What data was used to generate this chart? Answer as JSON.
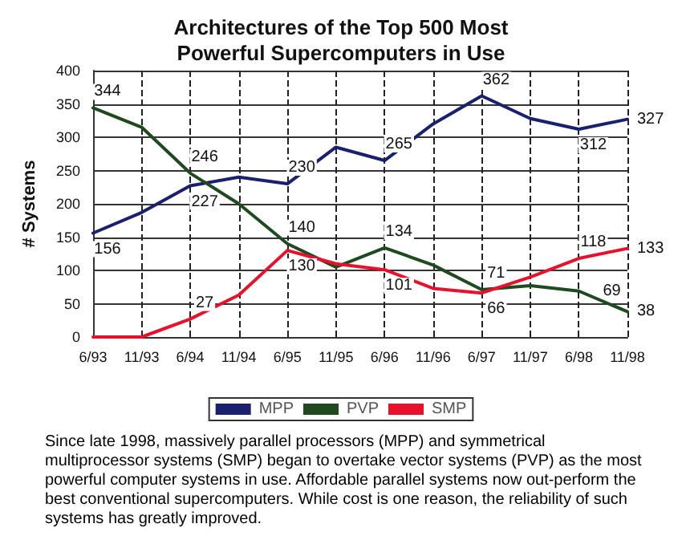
{
  "chart_data": {
    "type": "line",
    "title": "Architectures of the Top 500 Most\nPowerful Supercomputers in Use",
    "ylabel": "# Systems",
    "categories": [
      "6/93",
      "11/93",
      "6/94",
      "11/94",
      "6/95",
      "11/95",
      "6/96",
      "11/96",
      "6/97",
      "11/97",
      "6/98",
      "11/98"
    ],
    "series": [
      {
        "name": "MPP",
        "color": "#1a1f6e",
        "values": [
          156,
          187,
          227,
          240,
          230,
          285,
          265,
          320,
          362,
          328,
          312,
          327
        ],
        "value_labels": [
          "156",
          null,
          "227",
          null,
          "230",
          null,
          "265",
          null,
          "362",
          null,
          "312",
          "327"
        ]
      },
      {
        "name": "PVP",
        "color": "#1f4a1f",
        "values": [
          344,
          315,
          246,
          200,
          140,
          105,
          134,
          108,
          71,
          77,
          69,
          38
        ],
        "value_labels": [
          "344",
          null,
          "246",
          null,
          "140",
          null,
          "134",
          null,
          "71",
          null,
          "69",
          "38"
        ]
      },
      {
        "name": "SMP",
        "color": "#e8102a",
        "values": [
          0,
          0,
          27,
          63,
          130,
          110,
          101,
          73,
          66,
          90,
          118,
          133
        ],
        "value_labels": [
          null,
          null,
          "27",
          null,
          "130",
          null,
          "101",
          null,
          "66",
          null,
          "118",
          "133"
        ]
      }
    ],
    "ylim": [
      0,
      400
    ],
    "yticks": [
      0,
      50,
      100,
      150,
      200,
      250,
      300,
      350,
      400
    ],
    "grid": true,
    "legend": "bottom",
    "marker": "none",
    "line_style": "solid",
    "annotations": [
      "Since late 1998, massively parallel processors (MPP) and symmetrical multiprocessor systems (SMP) began to overtake vector systems (PVP) as the most powerful computer systems in use. Affordable parallel systems now out-perform the best conventional supercomputers. While cost is one reason, the reliability of such systems has greatly improved."
    ]
  }
}
